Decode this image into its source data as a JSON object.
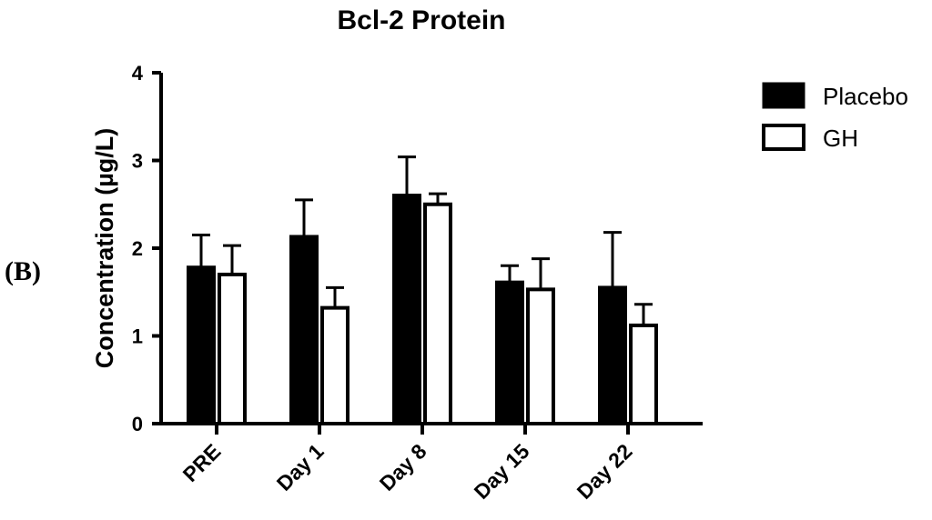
{
  "panel_label": "(B)",
  "chart_data": {
    "type": "bar",
    "title": "Bcl-2 Protein",
    "ylabel": "Concentration (µg/L)",
    "xlabel": "",
    "ylim": [
      0,
      4
    ],
    "yticks": [
      "0",
      "1",
      "2",
      "3",
      "4"
    ],
    "categories": [
      "PRE",
      "Day 1",
      "Day 8",
      "Day 15",
      "Day 22"
    ],
    "series": [
      {
        "name": "Placebo",
        "values": [
          1.78,
          2.13,
          2.6,
          1.61,
          1.55
        ],
        "errors": [
          0.37,
          0.42,
          0.44,
          0.19,
          0.63
        ],
        "fill": "#000000"
      },
      {
        "name": "GH",
        "values": [
          1.7,
          1.32,
          2.5,
          1.53,
          1.12
        ],
        "errors": [
          0.33,
          0.23,
          0.12,
          0.35,
          0.24
        ],
        "fill": "#ffffff"
      }
    ],
    "legend_position": "top-right",
    "grid": false
  }
}
